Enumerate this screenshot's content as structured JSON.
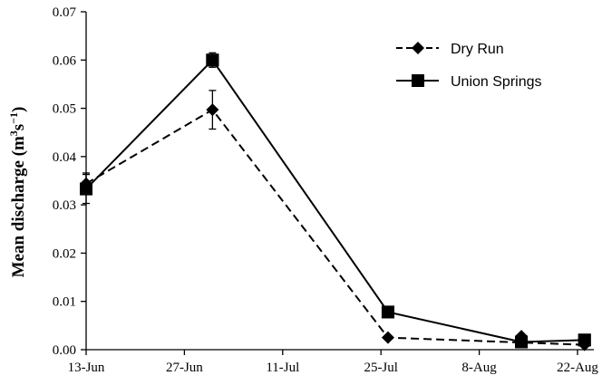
{
  "chart_data": {
    "type": "line",
    "title": "",
    "xlabel": "",
    "ylabel": "Mean discharge (m³s⁻¹)",
    "ylabel_parts": {
      "main": "Mean discharge (m",
      "sup1": "3",
      "mid": "s",
      "sup2": "−1",
      "end": ")"
    },
    "x_ticks": [
      "13-Jun",
      "27-Jun",
      "11-Jul",
      "25-Jul",
      "8-Aug",
      "22-Aug"
    ],
    "x_tick_days": [
      0,
      14,
      28,
      42,
      56,
      70
    ],
    "xlim_days": [
      0,
      70
    ],
    "y_ticks": [
      "0.00",
      "0.01",
      "0.02",
      "0.03",
      "0.04",
      "0.05",
      "0.06",
      "0.07"
    ],
    "ylim": [
      0,
      0.07
    ],
    "grid": false,
    "legend_position": "top-right",
    "series": [
      {
        "name": "Dry Run",
        "marker": "diamond",
        "line_style": "dashed",
        "x": [
          "13-Jun",
          "1-Jul",
          "26-Jul",
          "23-Aug"
        ],
        "x_days": [
          0,
          18,
          43,
          71
        ],
        "y": [
          0.0344,
          0.0497,
          0.0025,
          0.001
        ],
        "error": [
          0.0022,
          0.004,
          0.0003,
          0.0002
        ],
        "extra_points": [
          {
            "x": "14-Aug",
            "x_day": 62,
            "y": 0.0028,
            "error": 0.0004
          }
        ]
      },
      {
        "name": "Union Springs",
        "marker": "square",
        "line_style": "solid",
        "x": [
          "13-Jun",
          "1-Jul",
          "26-Jul",
          "14-Aug",
          "23-Aug"
        ],
        "x_days": [
          0,
          18,
          43,
          62,
          71
        ],
        "y": [
          0.0333,
          0.06,
          0.0078,
          0.0016,
          0.002
        ],
        "error": [
          0.003,
          0.0015,
          0.0003,
          0.0003,
          0.0002
        ]
      }
    ]
  }
}
